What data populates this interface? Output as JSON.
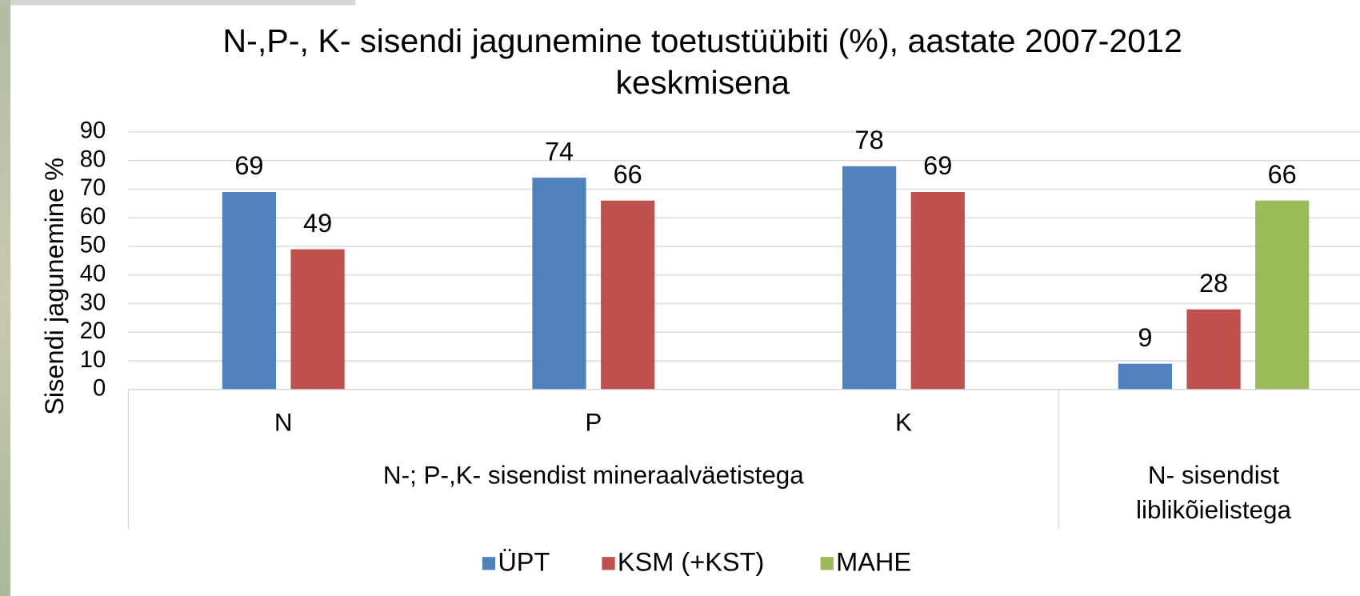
{
  "chart_data": {
    "type": "bar",
    "title": [
      "N-,P-, K- sisendi jagunemine toetustüübiti (%), aastate 2007-2012",
      "keskmisena"
    ],
    "y_label": "Sisendi jagunemine %",
    "category_groups": [
      {
        "label": [
          "N-; P-,K- sisendist mineraalväetistega"
        ],
        "categories": [
          "N",
          "P",
          "K"
        ]
      },
      {
        "label": [
          "N- sisendist",
          "liblikõielistega"
        ],
        "categories": [
          null
        ]
      }
    ],
    "series": [
      {
        "name": "ÜPT",
        "color": "#4f81bd",
        "values": [
          69,
          74,
          78,
          9
        ]
      },
      {
        "name": "KSM (+KST)",
        "color": "#c0504d",
        "values": [
          49,
          66,
          69,
          28
        ]
      },
      {
        "name": "MAHE",
        "color": "#9bbb59",
        "values": [
          null,
          null,
          null,
          66
        ]
      }
    ],
    "ylim": [
      0,
      90
    ],
    "yticks": [
      0,
      10,
      20,
      30,
      40,
      50,
      60,
      70,
      80,
      90
    ],
    "grid": true,
    "legend": "bottom"
  }
}
